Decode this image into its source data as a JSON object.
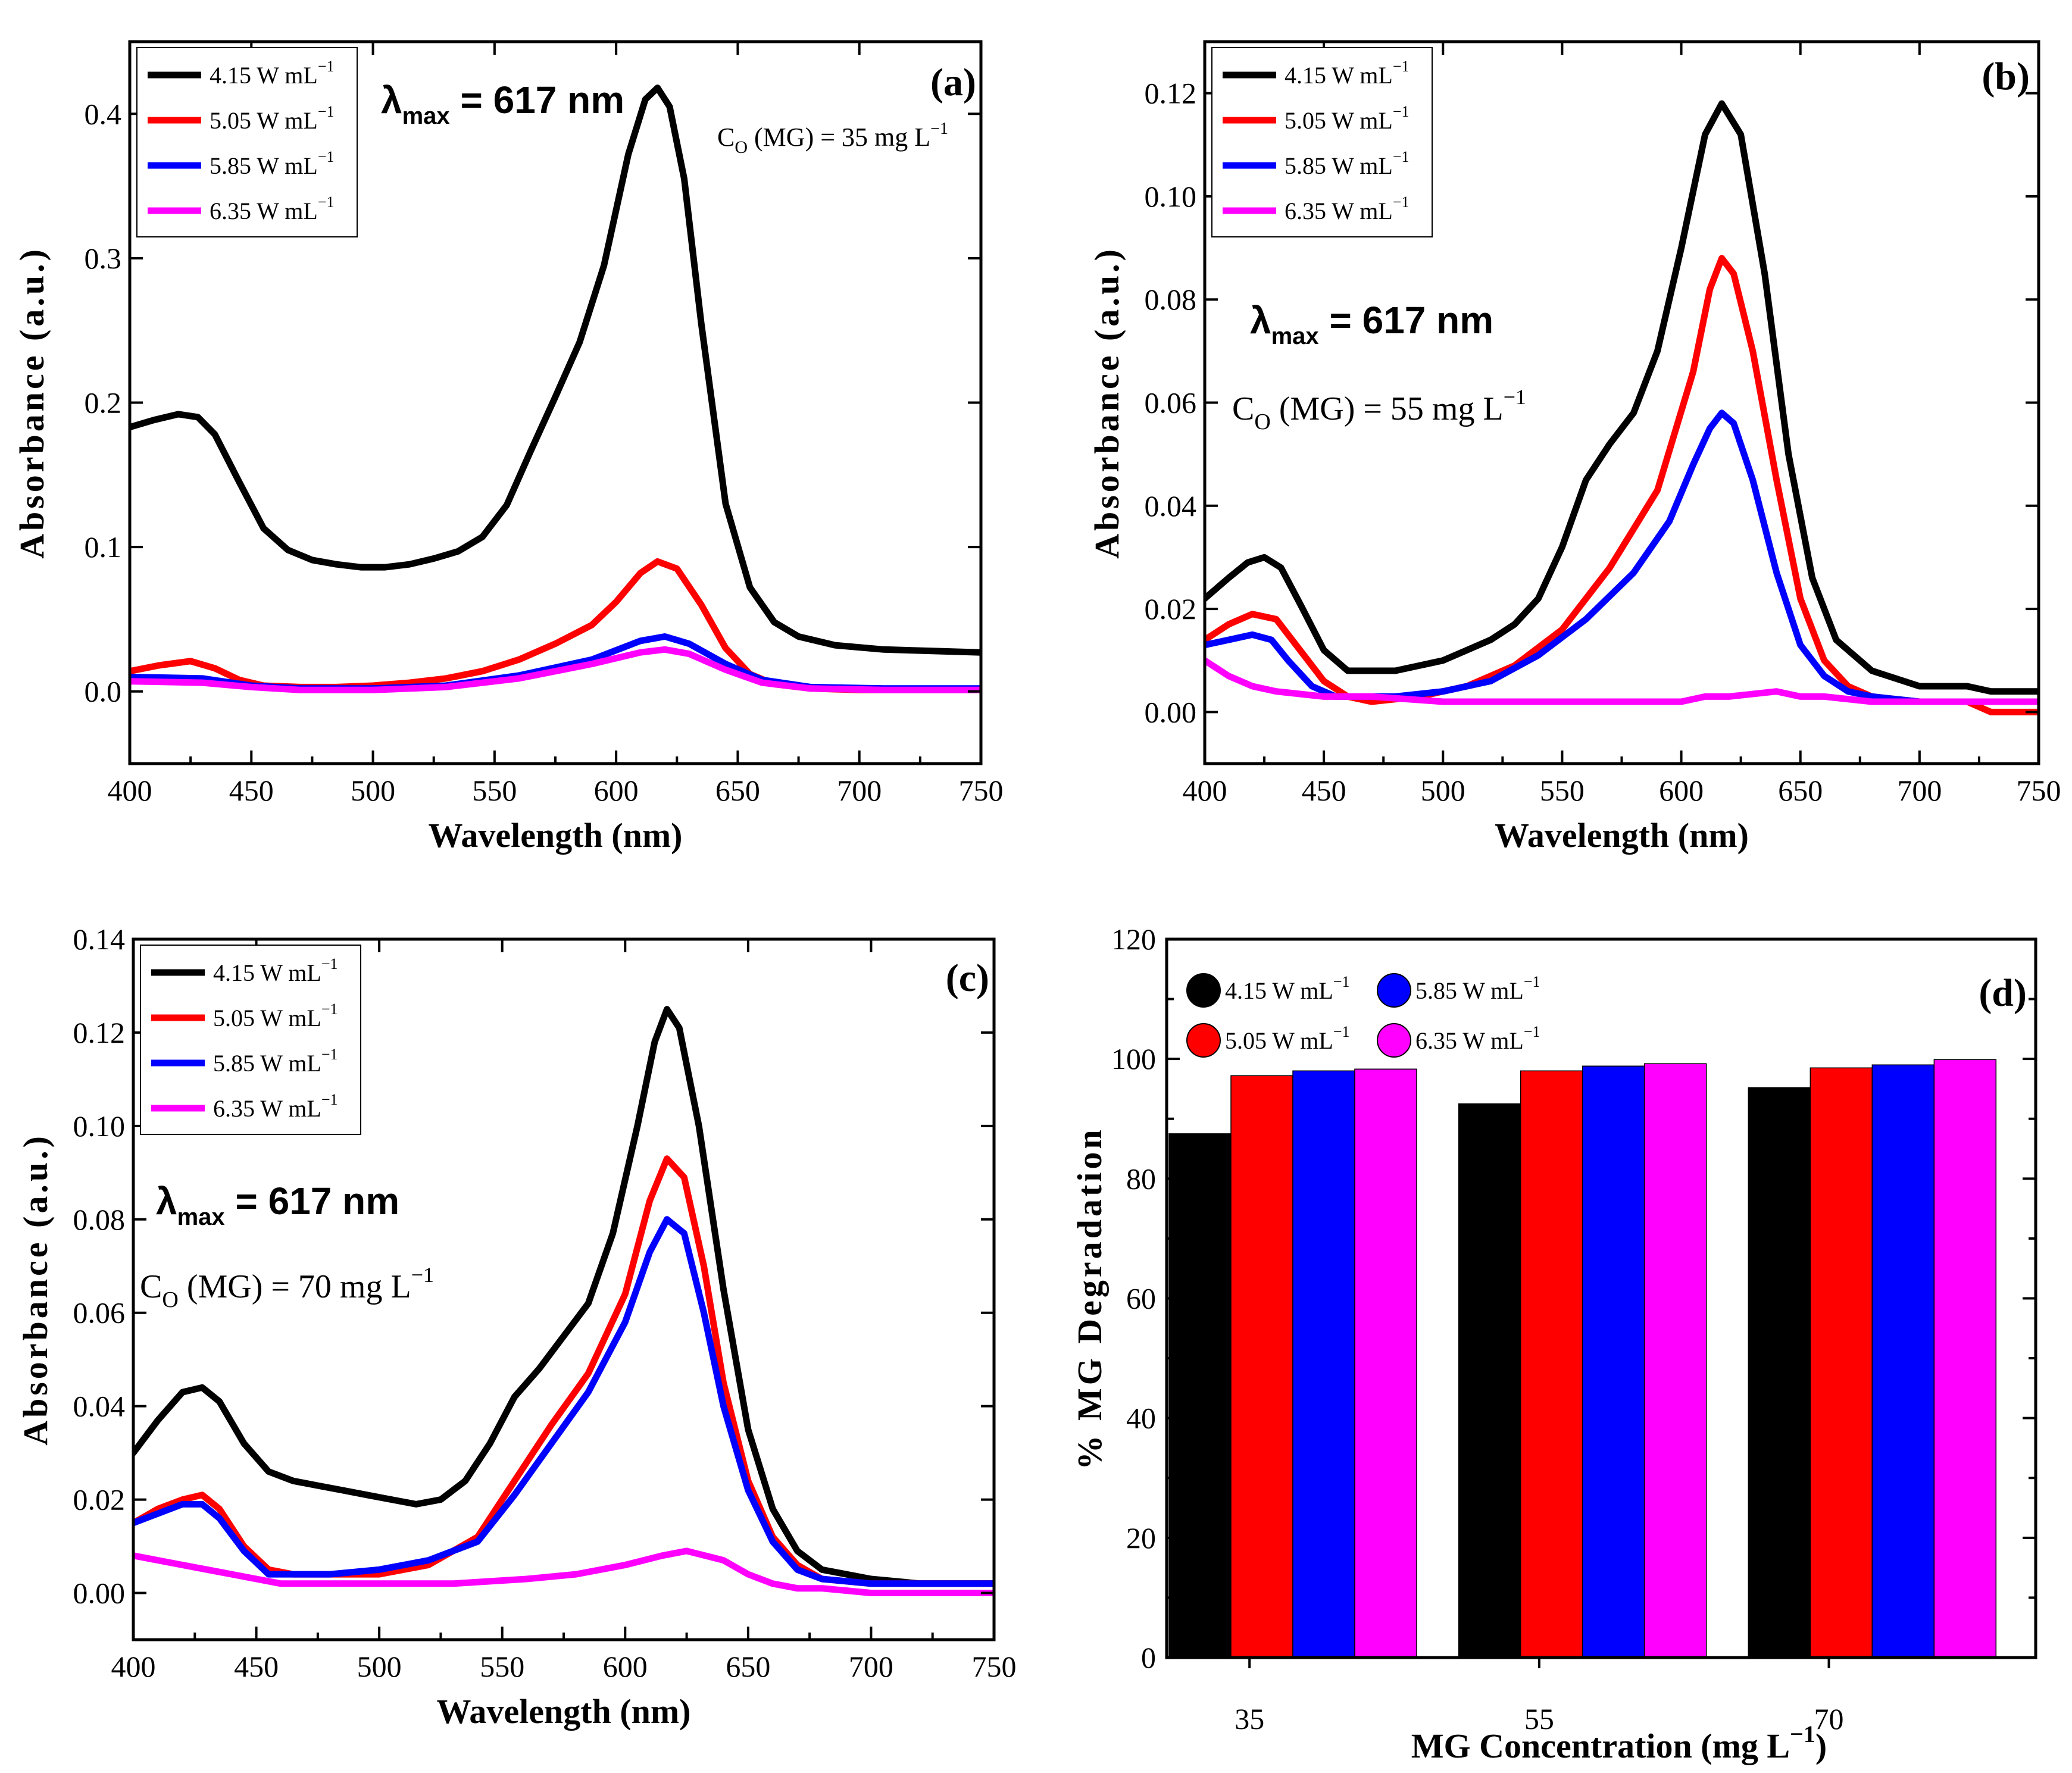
{
  "chart_data": [
    {
      "id": "a",
      "type": "line",
      "panel_label": "(a)",
      "xlabel": "Wavelength (nm)",
      "ylabel": "Absorbance (a.u.)",
      "xlim": [
        400,
        750
      ],
      "ylim": [
        -0.05,
        0.45
      ],
      "xticks": [
        400,
        450,
        500,
        550,
        600,
        650,
        700,
        750
      ],
      "yticks": [
        0.0,
        0.1,
        0.2,
        0.3,
        0.4
      ],
      "ytick_format": 1,
      "lambda_main": "λ",
      "lambda_sub": "max",
      "lambda_value": " = 617 nm",
      "conc_main": "C",
      "conc_sub": "O",
      "conc_rest": " (MG) = 35 mg L",
      "conc_sup": "−1",
      "legend": {
        "position": "top-left"
      },
      "series": [
        {
          "name": "4.15 W mL",
          "name_sup": "−1",
          "color": "#000000",
          "x": [
            400,
            410,
            420,
            428,
            435,
            445,
            455,
            465,
            475,
            485,
            495,
            505,
            515,
            525,
            535,
            545,
            555,
            565,
            575,
            585,
            595,
            605,
            612,
            617,
            622,
            628,
            635,
            645,
            655,
            665,
            675,
            690,
            710,
            730,
            750
          ],
          "y": [
            0.183,
            0.188,
            0.192,
            0.19,
            0.178,
            0.145,
            0.113,
            0.098,
            0.091,
            0.088,
            0.086,
            0.086,
            0.088,
            0.092,
            0.097,
            0.107,
            0.129,
            0.167,
            0.204,
            0.242,
            0.295,
            0.372,
            0.41,
            0.418,
            0.405,
            0.355,
            0.255,
            0.13,
            0.072,
            0.048,
            0.038,
            0.032,
            0.029,
            0.028,
            0.027
          ]
        },
        {
          "name": "5.05 W mL",
          "name_sup": "−1",
          "color": "#ff0000",
          "x": [
            400,
            412,
            425,
            435,
            445,
            455,
            470,
            485,
            500,
            515,
            530,
            545,
            560,
            575,
            590,
            600,
            610,
            617,
            625,
            635,
            645,
            655,
            665,
            680,
            700,
            720,
            750
          ],
          "y": [
            0.014,
            0.018,
            0.021,
            0.016,
            0.008,
            0.004,
            0.003,
            0.003,
            0.004,
            0.006,
            0.009,
            0.014,
            0.022,
            0.033,
            0.046,
            0.062,
            0.082,
            0.09,
            0.085,
            0.06,
            0.03,
            0.012,
            0.005,
            0.002,
            0.001,
            0.001,
            0.001
          ]
        },
        {
          "name": "5.85 W mL",
          "name_sup": "−1",
          "color": "#0000ff",
          "x": [
            400,
            430,
            450,
            470,
            500,
            530,
            560,
            590,
            610,
            620,
            630,
            645,
            660,
            680,
            710,
            750
          ],
          "y": [
            0.01,
            0.009,
            0.004,
            0.002,
            0.002,
            0.004,
            0.011,
            0.022,
            0.035,
            0.038,
            0.033,
            0.019,
            0.008,
            0.003,
            0.002,
            0.002
          ]
        },
        {
          "name": "6.35 W mL",
          "name_sup": "−1",
          "color": "#ff00ff",
          "x": [
            400,
            430,
            450,
            470,
            500,
            530,
            560,
            590,
            610,
            620,
            630,
            645,
            660,
            680,
            710,
            750
          ],
          "y": [
            0.007,
            0.006,
            0.003,
            0.001,
            0.001,
            0.003,
            0.009,
            0.019,
            0.027,
            0.029,
            0.026,
            0.015,
            0.006,
            0.002,
            0.001,
            0.001
          ]
        }
      ]
    },
    {
      "id": "b",
      "type": "line",
      "panel_label": "(b)",
      "xlabel": "Wavelength (nm)",
      "ylabel": "Absorbance (a.u.)",
      "xlim": [
        400,
        750
      ],
      "ylim": [
        -0.01,
        0.13
      ],
      "xticks": [
        400,
        450,
        500,
        550,
        600,
        650,
        700,
        750
      ],
      "yticks": [
        0.0,
        0.02,
        0.04,
        0.06,
        0.08,
        0.1,
        0.12
      ],
      "ytick_format": 2,
      "lambda_main": "λ",
      "lambda_sub": "max",
      "lambda_value": " = 617 nm",
      "conc_main": "C",
      "conc_sub": "O",
      "conc_rest": " (MG) = 55 mg L",
      "conc_sup": "−1",
      "legend": {
        "position": "top-left"
      },
      "series": [
        {
          "name": "4.15 W mL",
          "name_sup": "−1",
          "color": "#000000",
          "x": [
            400,
            410,
            418,
            425,
            432,
            440,
            450,
            460,
            470,
            480,
            490,
            500,
            510,
            520,
            530,
            540,
            550,
            560,
            570,
            580,
            590,
            600,
            610,
            617,
            625,
            635,
            645,
            655,
            665,
            680,
            700,
            720,
            730,
            750
          ],
          "y": [
            0.022,
            0.026,
            0.029,
            0.03,
            0.028,
            0.021,
            0.012,
            0.008,
            0.008,
            0.008,
            0.009,
            0.01,
            0.012,
            0.014,
            0.017,
            0.022,
            0.032,
            0.045,
            0.052,
            0.058,
            0.07,
            0.09,
            0.112,
            0.118,
            0.112,
            0.085,
            0.05,
            0.026,
            0.014,
            0.008,
            0.005,
            0.005,
            0.004,
            0.004
          ]
        },
        {
          "name": "5.05 W mL",
          "name_sup": "−1",
          "color": "#ff0000",
          "x": [
            400,
            410,
            420,
            430,
            440,
            450,
            460,
            470,
            490,
            510,
            530,
            550,
            570,
            590,
            605,
            612,
            617,
            622,
            630,
            640,
            650,
            660,
            670,
            680,
            700,
            720,
            730,
            750
          ],
          "y": [
            0.014,
            0.017,
            0.019,
            0.018,
            0.012,
            0.006,
            0.003,
            0.002,
            0.003,
            0.005,
            0.009,
            0.016,
            0.028,
            0.043,
            0.066,
            0.082,
            0.088,
            0.085,
            0.07,
            0.045,
            0.022,
            0.01,
            0.005,
            0.003,
            0.002,
            0.002,
            0.0,
            0.0
          ]
        },
        {
          "name": "5.85 W mL",
          "name_sup": "−1",
          "color": "#0000ff",
          "x": [
            400,
            410,
            420,
            428,
            435,
            445,
            455,
            465,
            480,
            500,
            520,
            540,
            560,
            580,
            595,
            605,
            612,
            617,
            622,
            630,
            640,
            650,
            660,
            670,
            680,
            700,
            720,
            730,
            750
          ],
          "y": [
            0.013,
            0.014,
            0.015,
            0.014,
            0.01,
            0.005,
            0.003,
            0.003,
            0.003,
            0.004,
            0.006,
            0.011,
            0.018,
            0.027,
            0.037,
            0.048,
            0.055,
            0.058,
            0.056,
            0.045,
            0.027,
            0.013,
            0.007,
            0.004,
            0.003,
            0.002,
            0.002,
            0.002,
            0.002
          ]
        },
        {
          "name": "6.35 W mL",
          "name_sup": "−1",
          "color": "#ff00ff",
          "x": [
            400,
            410,
            420,
            430,
            450,
            470,
            500,
            550,
            600,
            610,
            620,
            640,
            650,
            660,
            680,
            700,
            750
          ],
          "y": [
            0.01,
            0.007,
            0.005,
            0.004,
            0.003,
            0.003,
            0.002,
            0.002,
            0.002,
            0.003,
            0.003,
            0.004,
            0.003,
            0.003,
            0.002,
            0.002,
            0.002
          ]
        }
      ]
    },
    {
      "id": "c",
      "type": "line",
      "panel_label": "(c)",
      "xlabel": "Wavelength (nm)",
      "ylabel": "Absorbance (a.u.)",
      "xlim": [
        400,
        750
      ],
      "ylim": [
        -0.01,
        0.14
      ],
      "xticks": [
        400,
        450,
        500,
        550,
        600,
        650,
        700,
        750
      ],
      "yticks": [
        0.0,
        0.02,
        0.04,
        0.06,
        0.08,
        0.1,
        0.12,
        0.14
      ],
      "ytick_format": 2,
      "lambda_main": "λ",
      "lambda_sub": "max",
      "lambda_value": " = 617 nm",
      "conc_main": "C",
      "conc_sub": "O",
      "conc_rest": " (MG) = 70 mg L",
      "conc_sup": "−1",
      "legend": {
        "position": "top-left"
      },
      "series": [
        {
          "name": "4.15 W mL",
          "name_sup": "−1",
          "color": "#000000",
          "x": [
            400,
            410,
            420,
            428,
            435,
            445,
            455,
            465,
            475,
            485,
            495,
            505,
            515,
            525,
            535,
            545,
            555,
            565,
            575,
            585,
            595,
            605,
            612,
            617,
            622,
            630,
            640,
            650,
            660,
            670,
            680,
            700,
            720,
            750
          ],
          "y": [
            0.03,
            0.037,
            0.043,
            0.044,
            0.041,
            0.032,
            0.026,
            0.024,
            0.023,
            0.022,
            0.021,
            0.02,
            0.019,
            0.02,
            0.024,
            0.032,
            0.042,
            0.048,
            0.055,
            0.062,
            0.077,
            0.1,
            0.118,
            0.125,
            0.121,
            0.1,
            0.065,
            0.035,
            0.018,
            0.009,
            0.005,
            0.003,
            0.002,
            0.002
          ]
        },
        {
          "name": "5.05 W mL",
          "name_sup": "−1",
          "color": "#ff0000",
          "x": [
            400,
            410,
            420,
            428,
            435,
            445,
            455,
            465,
            480,
            500,
            520,
            540,
            555,
            570,
            585,
            600,
            610,
            617,
            624,
            632,
            640,
            650,
            660,
            670,
            680,
            700,
            720,
            750
          ],
          "y": [
            0.015,
            0.018,
            0.02,
            0.021,
            0.018,
            0.01,
            0.005,
            0.004,
            0.004,
            0.004,
            0.006,
            0.012,
            0.024,
            0.036,
            0.047,
            0.064,
            0.084,
            0.093,
            0.089,
            0.07,
            0.045,
            0.024,
            0.012,
            0.006,
            0.003,
            0.002,
            0.002,
            0.002
          ]
        },
        {
          "name": "5.85 W mL",
          "name_sup": "−1",
          "color": "#0000ff",
          "x": [
            400,
            410,
            420,
            428,
            435,
            445,
            455,
            465,
            480,
            500,
            520,
            540,
            555,
            570,
            585,
            600,
            610,
            617,
            624,
            632,
            640,
            650,
            660,
            670,
            680,
            700,
            720,
            750
          ],
          "y": [
            0.015,
            0.017,
            0.019,
            0.019,
            0.016,
            0.009,
            0.004,
            0.004,
            0.004,
            0.005,
            0.007,
            0.011,
            0.021,
            0.032,
            0.043,
            0.058,
            0.073,
            0.08,
            0.077,
            0.06,
            0.04,
            0.022,
            0.011,
            0.005,
            0.003,
            0.002,
            0.002,
            0.002
          ]
        },
        {
          "name": "6.35 W mL",
          "name_sup": "−1",
          "color": "#ff00ff",
          "x": [
            400,
            410,
            420,
            430,
            440,
            450,
            460,
            480,
            500,
            530,
            560,
            580,
            600,
            615,
            625,
            640,
            650,
            660,
            670,
            680,
            700,
            720,
            750
          ],
          "y": [
            0.008,
            0.007,
            0.006,
            0.005,
            0.004,
            0.003,
            0.002,
            0.002,
            0.002,
            0.002,
            0.003,
            0.004,
            0.006,
            0.008,
            0.009,
            0.007,
            0.004,
            0.002,
            0.001,
            0.001,
            0.0,
            0.0,
            0.0
          ]
        }
      ]
    },
    {
      "id": "d",
      "type": "bar",
      "panel_label": "(d)",
      "xlabel_main": "MG Concentration (mg L",
      "xlabel_sup": "−1",
      "xlabel_close": ")",
      "ylabel": "% MG Degradation",
      "ylim": [
        0,
        120
      ],
      "yticks": [
        0,
        20,
        40,
        60,
        80,
        100,
        120
      ],
      "categories": [
        "35",
        "55",
        "70"
      ],
      "legend": {
        "position": "top-left",
        "columns": 2
      },
      "series": [
        {
          "name": "4.15 W mL",
          "name_sup": "−1",
          "color": "#000000",
          "values": [
            87.5,
            92.5,
            95.2
          ]
        },
        {
          "name": "5.05 W mL",
          "name_sup": "−1",
          "color": "#ff0000",
          "values": [
            97.2,
            98.0,
            98.5
          ]
        },
        {
          "name": "5.85 W mL",
          "name_sup": "−1",
          "color": "#0000ff",
          "values": [
            98.0,
            98.8,
            99.0
          ]
        },
        {
          "name": "6.35 W mL",
          "name_sup": "−1",
          "color": "#ff00ff",
          "values": [
            98.3,
            99.2,
            99.9
          ]
        }
      ]
    }
  ]
}
